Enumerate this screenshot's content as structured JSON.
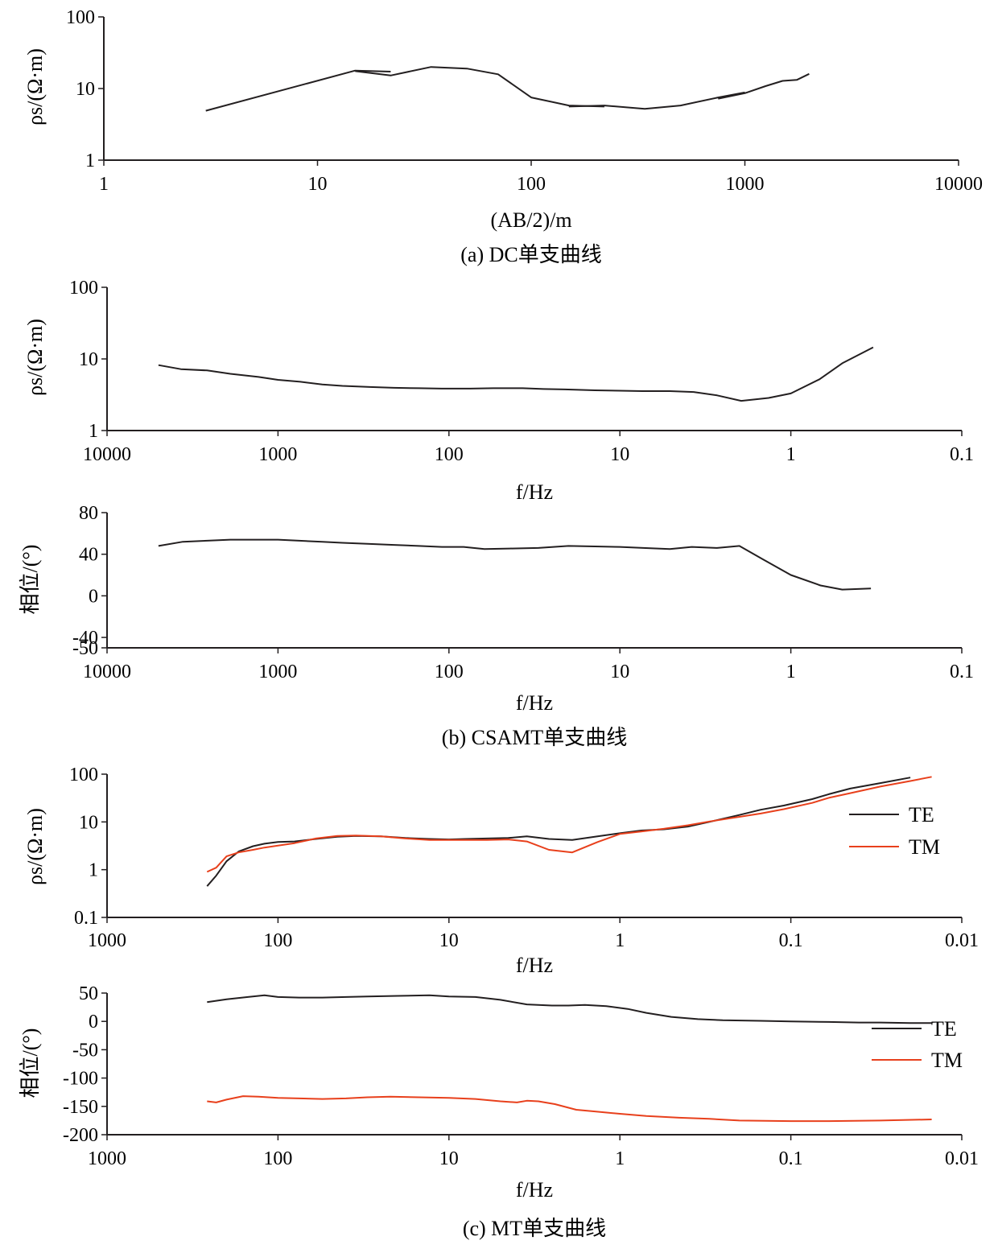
{
  "chart_data": [
    {
      "id": "dc",
      "type": "line",
      "xscale": "log",
      "yscale": "log",
      "xlim": [
        1,
        10000
      ],
      "ylim": [
        1,
        100
      ],
      "xticks": [
        "1",
        "10",
        "100",
        "1000",
        "10000"
      ],
      "yticks": [
        "1",
        "10",
        "100"
      ],
      "xlabel": "(AB/2)/m",
      "ylabel": "ρs/(Ω·m)",
      "caption": "(a) DC单支曲线",
      "series": [
        {
          "color": "#231f20",
          "points": [
            [
              3,
              4.9
            ],
            [
              15,
              17.8
            ],
            [
              22,
              17.2
            ]
          ]
        },
        {
          "color": "#231f20",
          "points": [
            [
              15,
              17.5
            ],
            [
              22,
              15.2
            ],
            [
              34,
              20.0
            ],
            [
              50,
              19.0
            ],
            [
              70,
              15.8
            ],
            [
              100,
              7.5
            ],
            [
              150,
              5.8
            ],
            [
              220,
              5.6
            ]
          ]
        },
        {
          "color": "#231f20",
          "points": [
            [
              150,
              5.6
            ],
            [
              220,
              5.8
            ],
            [
              340,
              5.2
            ],
            [
              500,
              5.8
            ],
            [
              750,
              7.5
            ],
            [
              1000,
              8.8
            ]
          ]
        },
        {
          "color": "#231f20",
          "points": [
            [
              750,
              7.2
            ],
            [
              1000,
              8.6
            ],
            [
              1250,
              10.8
            ],
            [
              1500,
              12.8
            ],
            [
              1750,
              13.2
            ],
            [
              2000,
              16.0
            ]
          ]
        }
      ]
    },
    {
      "id": "csamt-rho",
      "type": "line",
      "xscale": "log",
      "yscale": "log",
      "xreversed": true,
      "xlim": [
        10000,
        0.1
      ],
      "ylim": [
        1,
        100
      ],
      "xticks": [
        "10000",
        "1000",
        "100",
        "10",
        "1",
        "0.1"
      ],
      "yticks": [
        "1",
        "10",
        "100"
      ],
      "xlabel": "f/Hz",
      "ylabel": "ρs/(Ω·m)",
      "series": [
        {
          "color": "#231f20",
          "points": [
            [
              5000,
              8.2
            ],
            [
              3700,
              7.2
            ],
            [
              2600,
              6.9
            ],
            [
              1900,
              6.2
            ],
            [
              1300,
              5.6
            ],
            [
              1000,
              5.1
            ],
            [
              740,
              4.8
            ],
            [
              550,
              4.4
            ],
            [
              420,
              4.2
            ],
            [
              290,
              4.05
            ],
            [
              210,
              3.95
            ],
            [
              150,
              3.9
            ],
            [
              110,
              3.85
            ],
            [
              75,
              3.85
            ],
            [
              55,
              3.9
            ],
            [
              37,
              3.9
            ],
            [
              28,
              3.8
            ],
            [
              21,
              3.75
            ],
            [
              14,
              3.65
            ],
            [
              10,
              3.6
            ],
            [
              7.4,
              3.55
            ],
            [
              5.1,
              3.55
            ],
            [
              3.7,
              3.45
            ],
            [
              2.7,
              3.1
            ],
            [
              1.95,
              2.6
            ],
            [
              1.35,
              2.85
            ],
            [
              1.0,
              3.3
            ],
            [
              0.68,
              5.2
            ],
            [
              0.5,
              8.7
            ],
            [
              0.33,
              14.5
            ]
          ]
        }
      ]
    },
    {
      "id": "csamt-phase",
      "type": "line",
      "xscale": "log",
      "yscale": "linear",
      "xreversed": true,
      "xlim": [
        10000,
        0.1
      ],
      "ylim": [
        -50,
        80
      ],
      "yticks_values": [
        80,
        40,
        0,
        -40,
        -50
      ],
      "xticks": [
        "10000",
        "1000",
        "100",
        "10",
        "1",
        "0.1"
      ],
      "yticks": [
        "80",
        "40",
        "0",
        "-40",
        "-50"
      ],
      "xlabel": "f/Hz",
      "ylabel": "相位/(°)",
      "caption": "(b) CSAMT单支曲线",
      "series": [
        {
          "color": "#231f20",
          "points": [
            [
              5000,
              48
            ],
            [
              3600,
              52
            ],
            [
              2600,
              53
            ],
            [
              1900,
              54
            ],
            [
              1300,
              54
            ],
            [
              1000,
              54
            ],
            [
              750,
              53
            ],
            [
              550,
              52
            ],
            [
              420,
              51
            ],
            [
              300,
              50
            ],
            [
              210,
              49
            ],
            [
              150,
              48
            ],
            [
              110,
              47
            ],
            [
              82,
              47
            ],
            [
              62,
              45
            ],
            [
              44,
              45.5
            ],
            [
              30,
              46
            ],
            [
              20,
              48
            ],
            [
              14,
              47.5
            ],
            [
              10,
              47
            ],
            [
              7.3,
              46
            ],
            [
              5.1,
              45
            ],
            [
              3.8,
              47
            ],
            [
              2.7,
              46
            ],
            [
              2.0,
              48
            ],
            [
              1.45,
              35
            ],
            [
              1.0,
              20
            ],
            [
              0.67,
              10
            ],
            [
              0.5,
              6
            ],
            [
              0.34,
              7
            ]
          ]
        }
      ]
    },
    {
      "id": "mt-rho",
      "type": "line",
      "xscale": "log",
      "yscale": "log",
      "xreversed": true,
      "xlim": [
        1000,
        0.01
      ],
      "ylim": [
        0.1,
        100
      ],
      "xticks": [
        "1000",
        "100",
        "10",
        "1",
        "0.1",
        "0.01"
      ],
      "yticks": [
        "0.1",
        "1",
        "10",
        "100"
      ],
      "xlabel": "f/Hz",
      "ylabel": "ρs/(Ω·m)",
      "legend": [
        "TE",
        "TM"
      ],
      "series": [
        {
          "name": "TE",
          "color": "#231f20",
          "points": [
            [
              260,
              0.45
            ],
            [
              230,
              0.75
            ],
            [
              200,
              1.5
            ],
            [
              170,
              2.4
            ],
            [
              140,
              3.1
            ],
            [
              120,
              3.5
            ],
            [
              100,
              3.8
            ],
            [
              80,
              3.9
            ],
            [
              60,
              4.4
            ],
            [
              45,
              4.9
            ],
            [
              35,
              5.1
            ],
            [
              25,
              5.0
            ],
            [
              18,
              4.6
            ],
            [
              13,
              4.4
            ],
            [
              10,
              4.3
            ],
            [
              8,
              4.4
            ],
            [
              6,
              4.5
            ],
            [
              4.5,
              4.6
            ],
            [
              3.5,
              5.0
            ],
            [
              2.6,
              4.4
            ],
            [
              1.9,
              4.2
            ],
            [
              1.35,
              5.0
            ],
            [
              1.0,
              5.8
            ],
            [
              0.75,
              6.6
            ],
            [
              0.55,
              7.0
            ],
            [
              0.4,
              8.0
            ],
            [
              0.3,
              10.0
            ],
            [
              0.2,
              14.0
            ],
            [
              0.15,
              18.0
            ],
            [
              0.11,
              22
            ],
            [
              0.075,
              30
            ],
            [
              0.06,
              38
            ],
            [
              0.045,
              50
            ],
            [
              0.03,
              65
            ],
            [
              0.02,
              85
            ]
          ]
        },
        {
          "name": "TM",
          "color": "#e8401c",
          "points": [
            [
              260,
              0.9
            ],
            [
              230,
              1.1
            ],
            [
              200,
              1.9
            ],
            [
              170,
              2.3
            ],
            [
              140,
              2.6
            ],
            [
              120,
              2.9
            ],
            [
              100,
              3.2
            ],
            [
              80,
              3.6
            ],
            [
              60,
              4.5
            ],
            [
              45,
              5.1
            ],
            [
              35,
              5.2
            ],
            [
              25,
              5.0
            ],
            [
              18,
              4.5
            ],
            [
              13,
              4.2
            ],
            [
              10,
              4.2
            ],
            [
              8,
              4.2
            ],
            [
              6,
              4.2
            ],
            [
              4.5,
              4.3
            ],
            [
              3.5,
              3.9
            ],
            [
              2.6,
              2.6
            ],
            [
              1.9,
              2.3
            ],
            [
              1.35,
              3.8
            ],
            [
              1.0,
              5.6
            ],
            [
              0.75,
              6.3
            ],
            [
              0.55,
              7.2
            ],
            [
              0.4,
              8.5
            ],
            [
              0.3,
              10.2
            ],
            [
              0.2,
              12.8
            ],
            [
              0.15,
              15.0
            ],
            [
              0.11,
              18.5
            ],
            [
              0.075,
              25
            ],
            [
              0.06,
              32
            ],
            [
              0.045,
              40
            ],
            [
              0.03,
              55
            ],
            [
              0.02,
              72
            ],
            [
              0.015,
              88
            ]
          ]
        }
      ]
    },
    {
      "id": "mt-phase",
      "type": "line",
      "xscale": "log",
      "yscale": "linear",
      "xreversed": true,
      "xlim": [
        1000,
        0.01
      ],
      "ylim": [
        -200,
        50
      ],
      "yticks_values": [
        50,
        0,
        -50,
        -100,
        -150,
        -200
      ],
      "xticks": [
        "1000",
        "100",
        "10",
        "1",
        "0.1",
        "0.01"
      ],
      "yticks": [
        "50",
        "0",
        "-50",
        "-100",
        "-150",
        "-200"
      ],
      "xlabel": "f/Hz",
      "ylabel": "相位/(°)",
      "legend": [
        "TE",
        "TM"
      ],
      "caption": "(c) MT单支曲线",
      "series": [
        {
          "name": "TE",
          "color": "#231f20",
          "points": [
            [
              260,
              34
            ],
            [
              200,
              39
            ],
            [
              150,
              43
            ],
            [
              120,
              46
            ],
            [
              100,
              43
            ],
            [
              75,
              42
            ],
            [
              55,
              42
            ],
            [
              40,
              43
            ],
            [
              30,
              44
            ],
            [
              20,
              45
            ],
            [
              13,
              46
            ],
            [
              10,
              44
            ],
            [
              7,
              43
            ],
            [
              5,
              38
            ],
            [
              3.5,
              30
            ],
            [
              2.5,
              28
            ],
            [
              2.0,
              28
            ],
            [
              1.6,
              29
            ],
            [
              1.2,
              27
            ],
            [
              0.9,
              22
            ],
            [
              0.7,
              15
            ],
            [
              0.5,
              8
            ],
            [
              0.35,
              4
            ],
            [
              0.25,
              2
            ],
            [
              0.15,
              1
            ],
            [
              0.1,
              0
            ],
            [
              0.06,
              -1
            ],
            [
              0.04,
              -2
            ],
            [
              0.03,
              -2
            ],
            [
              0.02,
              -3
            ],
            [
              0.015,
              -3
            ]
          ]
        },
        {
          "name": "TM",
          "color": "#e8401c",
          "points": [
            [
              260,
              -141
            ],
            [
              230,
              -143
            ],
            [
              200,
              -138
            ],
            [
              160,
              -132
            ],
            [
              130,
              -133
            ],
            [
              100,
              -135
            ],
            [
              75,
              -136
            ],
            [
              55,
              -137
            ],
            [
              40,
              -136
            ],
            [
              30,
              -134
            ],
            [
              22,
              -133
            ],
            [
              15,
              -134
            ],
            [
              10,
              -135
            ],
            [
              7,
              -137
            ],
            [
              5,
              -141
            ],
            [
              4,
              -143
            ],
            [
              3.5,
              -140
            ],
            [
              3,
              -141
            ],
            [
              2.4,
              -146
            ],
            [
              1.8,
              -156
            ],
            [
              1.4,
              -159
            ],
            [
              1.0,
              -163
            ],
            [
              0.7,
              -167
            ],
            [
              0.45,
              -170
            ],
            [
              0.3,
              -172
            ],
            [
              0.2,
              -175
            ],
            [
              0.1,
              -176
            ],
            [
              0.06,
              -176
            ],
            [
              0.03,
              -175
            ],
            [
              0.015,
              -173
            ]
          ]
        }
      ]
    }
  ]
}
